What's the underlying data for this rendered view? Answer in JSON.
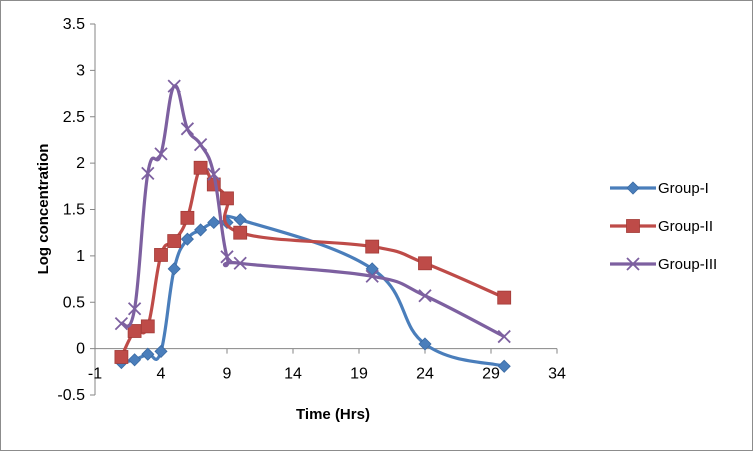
{
  "chart_data": {
    "type": "line",
    "xlabel": "Time (Hrs)",
    "ylabel": "Log concentration",
    "xlim": [
      -1,
      34
    ],
    "ylim": [
      -0.5,
      3.5
    ],
    "x_ticks": [
      -1,
      4,
      9,
      14,
      19,
      24,
      29,
      34
    ],
    "y_ticks": [
      -0.5,
      0,
      0.5,
      1,
      1.5,
      2,
      2.5,
      3,
      3.5
    ],
    "grid": false,
    "legend_position": "right",
    "smooth": true,
    "series": [
      {
        "name": "Group-I",
        "color": "#4a7ebb",
        "marker": "diamond",
        "points": [
          [
            1,
            -0.15
          ],
          [
            2,
            -0.12
          ],
          [
            3,
            -0.06
          ],
          [
            4,
            -0.03
          ],
          [
            5,
            0.86
          ],
          [
            6,
            1.18
          ],
          [
            7,
            1.28
          ],
          [
            8,
            1.36
          ],
          [
            9,
            1.36
          ],
          [
            10,
            1.39
          ],
          [
            20,
            0.86
          ],
          [
            24,
            0.05
          ],
          [
            30,
            -0.19
          ]
        ]
      },
      {
        "name": "Group-II",
        "color": "#be4b48",
        "marker": "square",
        "points": [
          [
            1,
            -0.09
          ],
          [
            2,
            0.19
          ],
          [
            3,
            0.24
          ],
          [
            4,
            1.01
          ],
          [
            5,
            1.16
          ],
          [
            6,
            1.41
          ],
          [
            7,
            1.95
          ],
          [
            8,
            1.77
          ],
          [
            9,
            1.62
          ],
          [
            10,
            1.25
          ],
          [
            20,
            1.1
          ],
          [
            24,
            0.92
          ],
          [
            30,
            0.55
          ]
        ]
      },
      {
        "name": "Group-III",
        "color": "#7d60a0",
        "marker": "x",
        "points": [
          [
            1,
            0.27
          ],
          [
            2,
            0.43
          ],
          [
            3,
            1.89
          ],
          [
            4,
            2.1
          ],
          [
            5,
            2.83
          ],
          [
            6,
            2.37
          ],
          [
            7,
            2.2
          ],
          [
            8,
            1.88
          ],
          [
            9,
            0.99
          ],
          [
            10,
            0.92
          ],
          [
            20,
            0.78
          ],
          [
            24,
            0.57
          ],
          [
            30,
            0.13
          ]
        ]
      }
    ]
  }
}
